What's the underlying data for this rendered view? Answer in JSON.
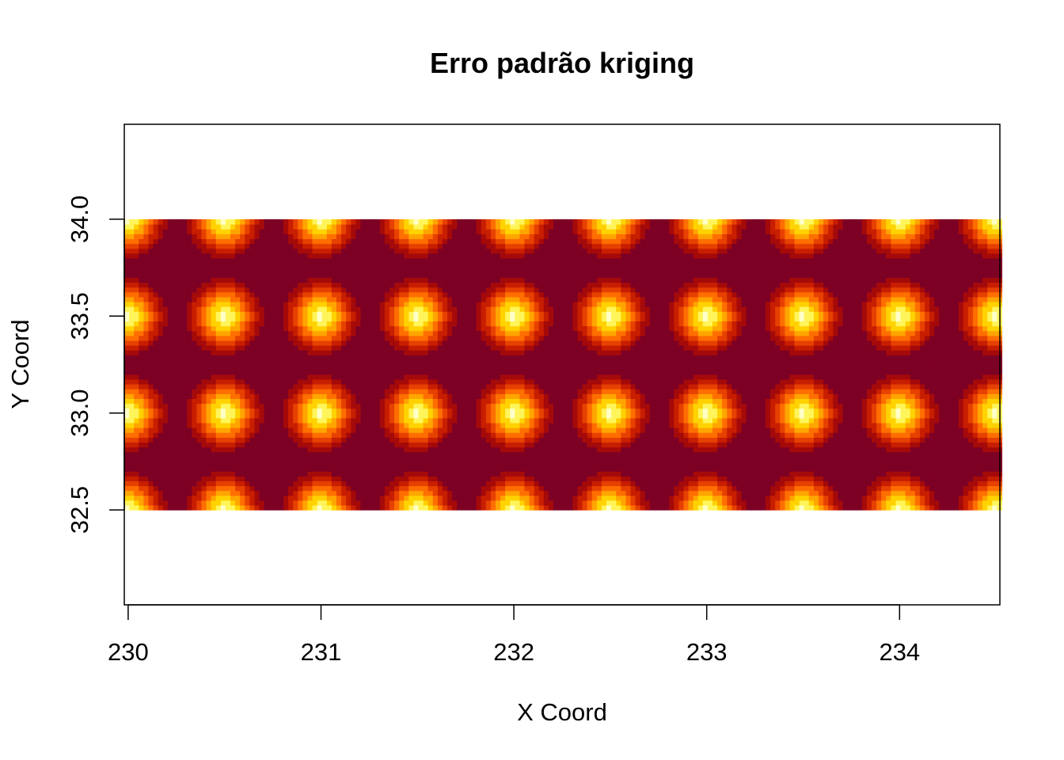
{
  "chart_data": {
    "type": "heatmap",
    "title": "Erro padrão kriging",
    "xlabel": "X Coord",
    "ylabel": "Y Coord",
    "xlim": [
      229.98,
      234.52
    ],
    "ylim": [
      32.01,
      34.49
    ],
    "x_ticks": [
      230,
      231,
      232,
      233,
      234
    ],
    "x_tick_labels": [
      "230",
      "231",
      "232",
      "233",
      "234"
    ],
    "y_ticks": [
      32.5,
      33.0,
      33.5,
      34.0
    ],
    "y_tick_labels": [
      "32.5",
      "33.0",
      "33.5",
      "34.0"
    ],
    "grid": false,
    "legend": "none",
    "raster": {
      "x_range": [
        229.98,
        234.52
      ],
      "y_range": [
        32.5,
        34.0
      ],
      "cell_size": 0.025,
      "observation_x": [
        230.0,
        230.5,
        231.0,
        231.5,
        232.0,
        232.5,
        233.0,
        233.5,
        234.0,
        234.5
      ],
      "observation_y": [
        32.5,
        33.0,
        33.5,
        34.0
      ],
      "stagger_x_offset": 0.5,
      "value_range": [
        0,
        1
      ],
      "relative_value_model": "0 at observation locations, rising with distance to 1 beyond 0.2 units",
      "note": "standard error is lowest (pale) at observation points and highest (dark red) between them"
    },
    "colors": {
      "scale": [
        "#FFFFC8",
        "#FFF55A",
        "#FFD200",
        "#FFA500",
        "#FF6E00",
        "#E64100",
        "#C81E00",
        "#A50A0A",
        "#7D0025"
      ],
      "scale_name": "heat (low to high)"
    }
  }
}
